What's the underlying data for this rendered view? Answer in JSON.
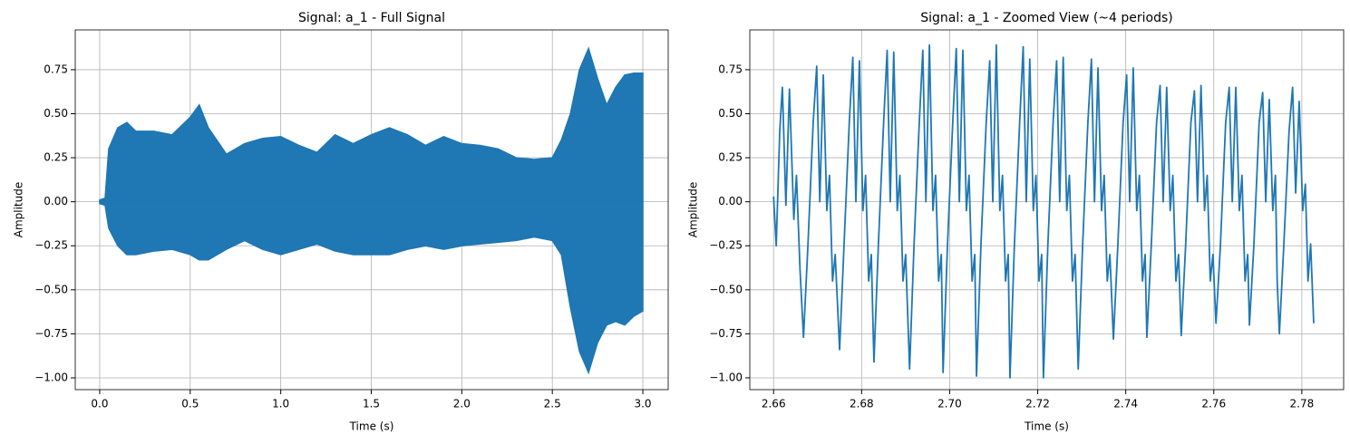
{
  "chart_data": [
    {
      "type": "area",
      "title": "Signal: a_1 - Full Signal",
      "xlabel": "Time (s)",
      "ylabel": "Amplitude",
      "x": [
        0,
        0.03,
        0.05,
        0.1,
        0.15,
        0.2,
        0.3,
        0.4,
        0.5,
        0.55,
        0.6,
        0.7,
        0.8,
        0.9,
        1.0,
        1.1,
        1.2,
        1.3,
        1.4,
        1.5,
        1.6,
        1.7,
        1.8,
        1.9,
        2.0,
        2.1,
        2.2,
        2.3,
        2.4,
        2.5,
        2.55,
        2.6,
        2.65,
        2.7,
        2.75,
        2.8,
        2.85,
        2.9,
        2.95,
        3.0
      ],
      "series": [
        {
          "color": "#1f77b4",
          "values": [
            0.01,
            0.02,
            0.3,
            0.42,
            0.45,
            0.4,
            0.4,
            0.38,
            0.48,
            0.55,
            0.42,
            0.27,
            0.33,
            0.36,
            0.37,
            0.32,
            0.28,
            0.38,
            0.33,
            0.38,
            0.42,
            0.38,
            0.32,
            0.37,
            0.33,
            0.32,
            0.3,
            0.25,
            0.24,
            0.25,
            0.35,
            0.5,
            0.75,
            0.87,
            0.7,
            0.55,
            0.65,
            0.72,
            0.73,
            0.73
          ]
        },
        {
          "color": "#1f77b4",
          "values": [
            -0.01,
            -0.02,
            -0.15,
            -0.25,
            -0.3,
            -0.3,
            -0.28,
            -0.27,
            -0.3,
            -0.33,
            -0.33,
            -0.27,
            -0.22,
            -0.27,
            -0.3,
            -0.27,
            -0.24,
            -0.28,
            -0.3,
            -0.3,
            -0.3,
            -0.27,
            -0.25,
            -0.27,
            -0.25,
            -0.24,
            -0.23,
            -0.22,
            -0.2,
            -0.22,
            -0.3,
            -0.6,
            -0.85,
            -0.97,
            -0.8,
            -0.7,
            -0.68,
            -0.7,
            -0.65,
            -0.62
          ]
        }
      ],
      "xlim": [
        -0.135,
        3.14
      ],
      "ylim": [
        -1.067,
        0.976
      ],
      "grid": true,
      "xticks": [
        {
          "value": 0,
          "label": "0.0"
        },
        {
          "value": 0.5,
          "label": "0.5"
        },
        {
          "value": 1,
          "label": "1.0"
        },
        {
          "value": 1.5,
          "label": "1.5"
        },
        {
          "value": 2,
          "label": "2.0"
        },
        {
          "value": 2.5,
          "label": "2.5"
        },
        {
          "value": 3,
          "label": "3.0"
        }
      ],
      "yticks": [
        {
          "value": -1,
          "label": "−1.00"
        },
        {
          "value": -0.75,
          "label": "−0.75"
        },
        {
          "value": -0.5,
          "label": "−0.50"
        },
        {
          "value": -0.25,
          "label": "−0.25"
        },
        {
          "value": 0,
          "label": "0.00"
        },
        {
          "value": 0.25,
          "label": "0.25"
        },
        {
          "value": 0.5,
          "label": "0.50"
        },
        {
          "value": 0.75,
          "label": "0.75"
        }
      ]
    },
    {
      "type": "line",
      "title": "Signal: a_1 - Zoomed View (~4 periods)",
      "xlabel": "Time (s)",
      "ylabel": "Amplitude",
      "x": [
        2.66,
        2.6606,
        2.6614,
        2.662,
        2.6628,
        2.6636,
        2.6646,
        2.6652,
        2.666,
        2.6668,
        2.6678,
        2.669,
        2.6698,
        2.6705,
        2.6713,
        2.6721,
        2.6727,
        2.6734,
        2.674,
        2.675,
        2.676,
        2.6772,
        2.678,
        2.6787,
        2.6795,
        2.6803,
        2.6809,
        2.6816,
        2.6822,
        2.6828,
        2.6838,
        2.685,
        2.6858,
        2.6865,
        2.6873,
        2.6881,
        2.6887,
        2.6894,
        2.69,
        2.6909,
        2.6919,
        2.6931,
        2.6939,
        2.6946,
        2.6954,
        2.6962,
        2.6968,
        2.6975,
        2.6981,
        2.6985,
        2.6995,
        2.7007,
        2.7015,
        2.7022,
        2.703,
        2.7038,
        2.7044,
        2.7051,
        2.7057,
        2.7061,
        2.7071,
        2.7083,
        2.7091,
        2.7098,
        2.7106,
        2.7114,
        2.712,
        2.7127,
        2.7133,
        2.7137,
        2.7147,
        2.7159,
        2.7167,
        2.7174,
        2.7182,
        2.719,
        2.7196,
        2.7203,
        2.7209,
        2.7213,
        2.7223,
        2.7235,
        2.7243,
        2.725,
        2.7258,
        2.7266,
        2.7272,
        2.7279,
        2.7285,
        2.7292,
        2.7302,
        2.7314,
        2.7322,
        2.7329,
        2.7337,
        2.7345,
        2.7351,
        2.7358,
        2.7364,
        2.7372,
        2.7382,
        2.7394,
        2.7402,
        2.7409,
        2.7417,
        2.7425,
        2.7431,
        2.7438,
        2.7444,
        2.7448,
        2.7458,
        2.747,
        2.7478,
        2.7485,
        2.7493,
        2.7501,
        2.7507,
        2.7514,
        2.752,
        2.7526,
        2.7536,
        2.7548,
        2.7556,
        2.7563,
        2.7571,
        2.7579,
        2.7585,
        2.7592,
        2.7598,
        2.7605,
        2.7615,
        2.7627,
        2.7635,
        2.7642,
        2.765,
        2.7658,
        2.7664,
        2.7671,
        2.7677,
        2.7681,
        2.7691,
        2.7703,
        2.7711,
        2.7718,
        2.7726,
        2.7734,
        2.774,
        2.7744,
        2.7749,
        2.7759,
        2.7771,
        2.7779,
        2.7786,
        2.7794,
        2.7802,
        2.7808,
        2.7814,
        2.782,
        2.7827
      ],
      "series": [
        {
          "color": "#1f77b4",
          "values": [
            0.03,
            -0.25,
            0.4,
            0.65,
            -0.02,
            0.64,
            -0.1,
            0.15,
            -0.38,
            -0.77,
            -0.25,
            0.45,
            0.77,
            0.0,
            0.72,
            -0.05,
            0.15,
            -0.45,
            -0.3,
            -0.84,
            -0.25,
            0.45,
            0.82,
            0.0,
            0.8,
            -0.05,
            0.15,
            -0.45,
            -0.3,
            -0.91,
            -0.25,
            0.45,
            0.86,
            0.0,
            0.85,
            -0.05,
            0.15,
            -0.45,
            -0.3,
            -0.95,
            -0.25,
            0.45,
            0.86,
            0.0,
            0.89,
            -0.05,
            0.15,
            -0.45,
            -0.3,
            -0.97,
            -0.25,
            0.45,
            0.87,
            0.0,
            0.86,
            -0.05,
            0.15,
            -0.45,
            -0.3,
            -0.99,
            -0.25,
            0.45,
            0.8,
            0.0,
            0.89,
            -0.05,
            0.15,
            -0.45,
            -0.3,
            -1.0,
            -0.25,
            0.45,
            0.88,
            0.0,
            0.81,
            -0.05,
            0.15,
            -0.45,
            -0.3,
            -1.0,
            -0.25,
            0.45,
            0.8,
            0.0,
            0.82,
            -0.05,
            0.15,
            -0.45,
            -0.3,
            -0.95,
            -0.25,
            0.45,
            0.81,
            0.0,
            0.76,
            -0.05,
            0.15,
            -0.45,
            -0.3,
            -0.78,
            -0.25,
            0.45,
            0.72,
            0.0,
            0.76,
            -0.05,
            0.15,
            -0.45,
            -0.3,
            -0.77,
            -0.25,
            0.45,
            0.66,
            0.0,
            0.65,
            -0.05,
            0.15,
            -0.45,
            -0.3,
            -0.76,
            -0.25,
            0.45,
            0.63,
            0.0,
            0.66,
            -0.05,
            0.15,
            -0.45,
            -0.3,
            -0.69,
            -0.25,
            0.45,
            0.65,
            0.0,
            0.65,
            -0.05,
            0.15,
            -0.45,
            -0.3,
            -0.7,
            -0.25,
            0.45,
            0.62,
            0.0,
            0.58,
            -0.05,
            0.15,
            -0.45,
            -0.75,
            -0.25,
            0.4,
            0.65,
            0.05,
            0.57,
            -0.05,
            0.1,
            -0.45,
            -0.24,
            -0.69
          ]
        }
      ],
      "xlim": [
        2.6546,
        2.7895
      ],
      "ylim": [
        -1.067,
        0.976
      ],
      "grid": true,
      "xticks": [
        {
          "value": 2.66,
          "label": "2.66"
        },
        {
          "value": 2.68,
          "label": "2.68"
        },
        {
          "value": 2.7,
          "label": "2.70"
        },
        {
          "value": 2.72,
          "label": "2.72"
        },
        {
          "value": 2.74,
          "label": "2.74"
        },
        {
          "value": 2.76,
          "label": "2.76"
        },
        {
          "value": 2.78,
          "label": "2.78"
        }
      ],
      "yticks": [
        {
          "value": -1,
          "label": "−1.00"
        },
        {
          "value": -0.75,
          "label": "−0.75"
        },
        {
          "value": -0.5,
          "label": "−0.50"
        },
        {
          "value": -0.25,
          "label": "−0.25"
        },
        {
          "value": 0,
          "label": "0.00"
        },
        {
          "value": 0.25,
          "label": "0.25"
        },
        {
          "value": 0.5,
          "label": "0.50"
        },
        {
          "value": 0.75,
          "label": "0.75"
        }
      ]
    }
  ]
}
